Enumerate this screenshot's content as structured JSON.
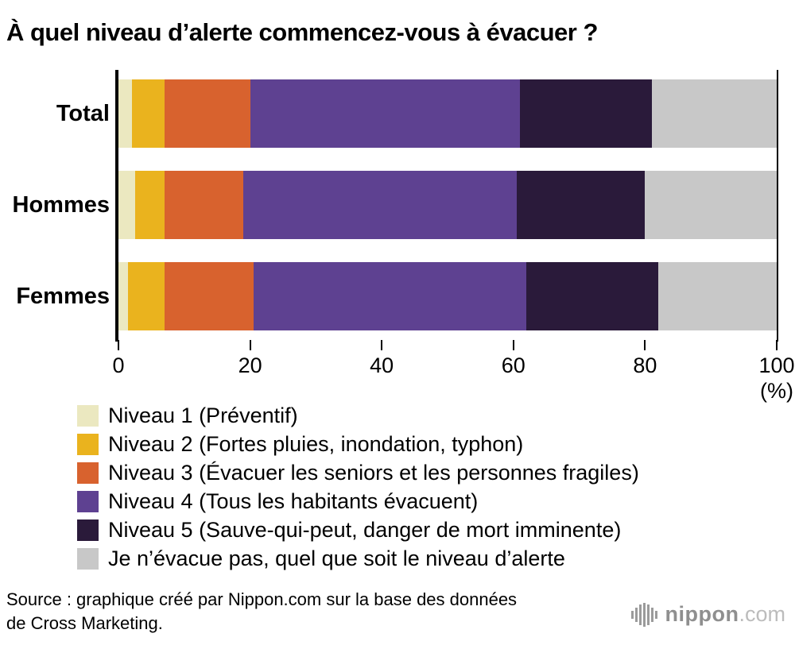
{
  "title": "À quel niveau d’alerte commencez-vous à évacuer ?",
  "chart_data": {
    "type": "bar",
    "stacked": true,
    "orientation": "horizontal",
    "title": "À quel niveau d’alerte commencez-vous à évacuer ?",
    "categories": [
      "Total",
      "Hommes",
      "Femmes"
    ],
    "series": [
      {
        "name": "Niveau 1 (Préventif)",
        "color": "#ebe8c0",
        "values": [
          2,
          2.5,
          1.5
        ]
      },
      {
        "name": "Niveau 2 (Fortes pluies, inondation, typhon)",
        "color": "#eab31e",
        "values": [
          5,
          4.5,
          5.5
        ]
      },
      {
        "name": "Niveau 3 (Évacuer les seniors et les personnes fragiles)",
        "color": "#d8622e",
        "values": [
          13,
          12,
          13.5
        ]
      },
      {
        "name": "Niveau 4 (Tous les habitants évacuent)",
        "color": "#5e4191",
        "values": [
          41,
          41.5,
          41.5
        ]
      },
      {
        "name": "Niveau 5 (Sauve-qui-peut, danger de mort imminente)",
        "color": "#2a1a3a",
        "values": [
          20,
          19.5,
          20
        ]
      },
      {
        "name": "Je n’évacue pas, quel que soit le niveau d’alerte",
        "color": "#c8c8c8",
        "values": [
          19,
          20,
          18
        ]
      }
    ],
    "x_ticks": [
      0,
      20,
      40,
      60,
      80,
      100
    ],
    "xlim": [
      0,
      100
    ],
    "xlabel": "(%)",
    "ylabel": "",
    "grid": false,
    "legend_position": "bottom"
  },
  "source": {
    "line1": "Source : graphique créé par Nippon.com sur la base des données",
    "line2": "de Cross Marketing."
  },
  "logo": {
    "name": "nippon",
    "tld": ".com"
  }
}
